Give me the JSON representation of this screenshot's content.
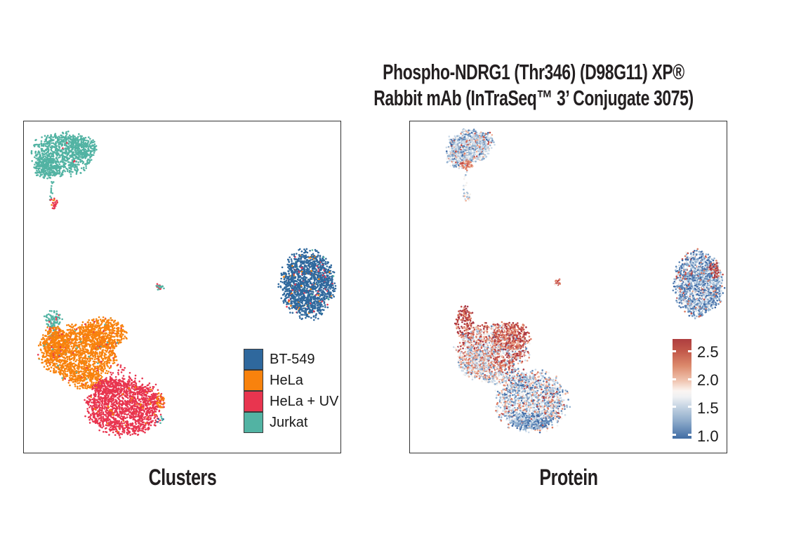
{
  "figure": {
    "title_line1": "Phospho-NDRG1 (Thr346) (D98G11) XP®",
    "title_line2": "Rabbit mAb (InTraSeq™ 3’ Conjugate 3075)"
  },
  "chart_data": [
    {
      "id": "clusters-panel",
      "type": "scatter",
      "title": "Clusters",
      "axes_visible": false,
      "encoding": "2D embedding of single cells colored by cell-line cluster",
      "legend": {
        "position": "inside-right",
        "entries": [
          {
            "label": "BT-549",
            "color": "#2F689D"
          },
          {
            "label": "HeLa",
            "color": "#F8820D"
          },
          {
            "label": "HeLa + UV",
            "color": "#E8354F"
          },
          {
            "label": "Jurkat",
            "color": "#52B3A3"
          }
        ]
      },
      "palettes": {
        "teal": [
          [
            "#52B3A3",
            1
          ]
        ],
        "tealSpeck": [
          [
            "#52B3A3",
            0.92
          ],
          [
            "#E8354F",
            0.08
          ]
        ],
        "tealRedMix": [
          [
            "#52B3A3",
            0.45
          ],
          [
            "#E8354F",
            0.55
          ]
        ],
        "orange": [
          [
            "#F8820D",
            0.955
          ],
          [
            "#E8354F",
            0.032
          ],
          [
            "#52B3A3",
            0.013
          ]
        ],
        "orangeOnly": [
          [
            "#F8820D",
            1
          ]
        ],
        "red": [
          [
            "#E8354F",
            0.975
          ],
          [
            "#F8820D",
            0.025
          ]
        ],
        "redOnly": [
          [
            "#E8354F",
            1
          ]
        ],
        "redTailEnd": [
          [
            "#E8354F",
            0.82
          ],
          [
            "#F8820D",
            0.18
          ]
        ],
        "tinyMix": [
          [
            "#52B3A3",
            0.55
          ],
          [
            "#E8354F",
            0.45
          ]
        ],
        "blueMain": [
          [
            "#2F689D",
            0.932
          ],
          [
            "#E8354F",
            0.028
          ],
          [
            "#F8820D",
            0.024
          ],
          [
            "#52B3A3",
            0.016
          ]
        ],
        "blueSpeck": [
          [
            "#2F689D",
            0.6
          ],
          [
            "#52B3A3",
            0.4
          ]
        ]
      },
      "clusters": [
        {
          "name": "Jurkat",
          "blobs": [
            {
              "type": "disk",
              "cx": 0.12,
              "cy": 0.1,
              "rx": 0.09,
              "ry": 0.062,
              "n": 850,
              "palette": "teal"
            },
            {
              "type": "disk",
              "cx": 0.19,
              "cy": 0.075,
              "rx": 0.042,
              "ry": 0.028,
              "n": 150,
              "palette": "teal"
            },
            {
              "type": "disk",
              "cx": 0.075,
              "cy": 0.14,
              "rx": 0.04,
              "ry": 0.032,
              "n": 170,
              "palette": "teal"
            },
            {
              "type": "disk",
              "cx": 0.12,
              "cy": 0.095,
              "rx": 0.06,
              "ry": 0.04,
              "n": 4,
              "palette": "redOnly"
            },
            {
              "type": "line",
              "x1": 0.09,
              "y1": 0.18,
              "x2": 0.086,
              "y2": 0.232,
              "n": 12,
              "jitter": 0.005,
              "palette": "teal"
            },
            {
              "type": "disk",
              "cx": 0.094,
              "cy": 0.247,
              "rx": 0.014,
              "ry": 0.016,
              "n": 26,
              "palette": "redTailEnd"
            },
            {
              "type": "disk",
              "cx": 0.093,
              "cy": 0.598,
              "rx": 0.027,
              "ry": 0.026,
              "n": 85,
              "palette": "tealSpeck"
            },
            {
              "type": "disk",
              "cx": 0.09,
              "cy": 0.64,
              "rx": 0.013,
              "ry": 0.022,
              "n": 28,
              "palette": "tealRedMix"
            }
          ]
        },
        {
          "name": "small mixed islet",
          "blobs": [
            {
              "type": "disk",
              "cx": 0.43,
              "cy": 0.499,
              "rx": 0.013,
              "ry": 0.011,
              "n": 22,
              "palette": "tinyMix"
            }
          ]
        },
        {
          "name": "HeLa",
          "blobs": [
            {
              "type": "disk",
              "cx": 0.175,
              "cy": 0.7,
              "rx": 0.115,
              "ry": 0.08,
              "n": 1450,
              "palette": "orange"
            },
            {
              "type": "disk",
              "cx": 0.25,
              "cy": 0.64,
              "rx": 0.07,
              "ry": 0.045,
              "n": 450,
              "palette": "orange"
            },
            {
              "type": "disk",
              "cx": 0.095,
              "cy": 0.67,
              "rx": 0.042,
              "ry": 0.05,
              "n": 250,
              "palette": "orange"
            },
            {
              "type": "disk",
              "cx": 0.2,
              "cy": 0.785,
              "rx": 0.055,
              "ry": 0.025,
              "n": 150,
              "palette": "orange"
            },
            {
              "type": "disk",
              "cx": 0.3,
              "cy": 0.78,
              "rx": 0.045,
              "ry": 0.045,
              "n": 30,
              "palette": "redOnly"
            }
          ]
        },
        {
          "name": "HeLa + UV",
          "blobs": [
            {
              "type": "disk",
              "cx": 0.32,
              "cy": 0.86,
              "rx": 0.115,
              "ry": 0.083,
              "n": 1550,
              "palette": "red"
            },
            {
              "type": "disk",
              "cx": 0.26,
              "cy": 0.8,
              "rx": 0.04,
              "ry": 0.03,
              "n": 120,
              "palette": "redOnly"
            },
            {
              "type": "disk",
              "cx": 0.432,
              "cy": 0.845,
              "rx": 0.013,
              "ry": 0.028,
              "n": 26,
              "palette": "orangeOnly"
            },
            {
              "type": "disk",
              "cx": 0.43,
              "cy": 0.9,
              "rx": 0.012,
              "ry": 0.012,
              "n": 7,
              "palette": "blueSpeck"
            }
          ]
        },
        {
          "name": "BT-549",
          "blobs": [
            {
              "type": "disk",
              "cx": 0.897,
              "cy": 0.492,
              "rx": 0.08,
              "ry": 0.094,
              "n": 1450,
              "palette": "blueMain"
            }
          ]
        }
      ]
    },
    {
      "id": "protein-panel",
      "type": "scatter",
      "title": "Protein",
      "axes_visible": false,
      "encoding": "same embedding colored by Phospho-NDRG1 protein signal",
      "colorbar": {
        "ticks": [
          "2.5",
          "2.0",
          "1.5",
          "1.0"
        ],
        "range_top": 2.7,
        "range_bottom": 0.95,
        "gradient_top_to_bottom": [
          "#AE3E3F",
          "#C2584A",
          "#DC8A6C",
          "#F0C5B1",
          "#FBF5F1",
          "#EFF1F3",
          "#C5D4E3",
          "#8FACCB",
          "#406CA4"
        ],
        "gradient_stops_pct": [
          0,
          12,
          27,
          42,
          52,
          58,
          68,
          82,
          100
        ]
      },
      "palettes": {
        "jurkatBlue": [
          [
            "#CBDAE9",
            0.26
          ],
          [
            "#93B2D1",
            0.26
          ],
          [
            "#F4F1EE",
            0.16
          ],
          [
            "#5E87B7",
            0.12
          ],
          [
            "#F0B49C",
            0.09
          ],
          [
            "#3C68A5",
            0.04
          ],
          [
            "#DD7C63",
            0.04
          ],
          [
            "#C44B44",
            0.03
          ]
        ],
        "paleTail": [
          [
            "#CBDAE9",
            0.45
          ],
          [
            "#F4F1EE",
            0.35
          ],
          [
            "#93B2D1",
            0.2
          ]
        ],
        "paleEnd": [
          [
            "#F4F1EE",
            0.4
          ],
          [
            "#CBDAE9",
            0.25
          ],
          [
            "#F0B49C",
            0.2
          ],
          [
            "#93B2D1",
            0.15
          ]
        ],
        "warmPatch": [
          [
            "#DD7C63",
            0.4
          ],
          [
            "#C44B44",
            0.3
          ],
          [
            "#F0B49C",
            0.3
          ]
        ],
        "tinyWarm": [
          [
            "#C44B44",
            0.35
          ],
          [
            "#DD7C63",
            0.3
          ],
          [
            "#F4F1EE",
            0.25
          ],
          [
            "#F0B49C",
            0.1
          ]
        ],
        "armRed": [
          [
            "#A63440",
            0.4
          ],
          [
            "#C44B44",
            0.3
          ],
          [
            "#DD7C63",
            0.2
          ],
          [
            "#F0B49C",
            0.1
          ]
        ],
        "hotRed": [
          [
            "#C44B44",
            0.3
          ],
          [
            "#A63440",
            0.22
          ],
          [
            "#DD7C63",
            0.28
          ],
          [
            "#F0B49C",
            0.12
          ],
          [
            "#F4F1EE",
            0.08
          ]
        ],
        "helaMix": [
          [
            "#DD7C63",
            0.2
          ],
          [
            "#C44B44",
            0.15
          ],
          [
            "#A63440",
            0.09
          ],
          [
            "#F0B49C",
            0.15
          ],
          [
            "#F4F1EE",
            0.15
          ],
          [
            "#CBDAE9",
            0.12
          ],
          [
            "#93B2D1",
            0.09
          ],
          [
            "#5E87B7",
            0.05
          ]
        ],
        "helaGrey": [
          [
            "#F4F1EE",
            0.24
          ],
          [
            "#CBDAE9",
            0.24
          ],
          [
            "#93B2D1",
            0.16
          ],
          [
            "#F0B49C",
            0.18
          ],
          [
            "#DD7C63",
            0.12
          ],
          [
            "#5E87B7",
            0.06
          ]
        ],
        "uvMix": [
          [
            "#CBDAE9",
            0.22
          ],
          [
            "#93B2D1",
            0.2
          ],
          [
            "#F4F1EE",
            0.17
          ],
          [
            "#5E87B7",
            0.13
          ],
          [
            "#F0B49C",
            0.1
          ],
          [
            "#DD7C63",
            0.08
          ],
          [
            "#3C68A5",
            0.05
          ],
          [
            "#C44B44",
            0.03
          ],
          [
            "#A63440",
            0.02
          ]
        ],
        "uvBottom": [
          [
            "#5E87B7",
            0.35
          ],
          [
            "#93B2D1",
            0.3
          ],
          [
            "#3C68A5",
            0.2
          ],
          [
            "#CBDAE9",
            0.15
          ]
        ],
        "btBlue": [
          [
            "#5E87B7",
            0.27
          ],
          [
            "#93B2D1",
            0.24
          ],
          [
            "#3C68A5",
            0.17
          ],
          [
            "#CBDAE9",
            0.16
          ],
          [
            "#F4F1EE",
            0.08
          ],
          [
            "#C44B44",
            0.04
          ],
          [
            "#DD7C63",
            0.04
          ]
        ]
      },
      "clusters": [
        {
          "name": "Jurkat",
          "blobs": [
            {
              "type": "disk",
              "cx": 0.185,
              "cy": 0.075,
              "rx": 0.065,
              "ry": 0.05,
              "n": 700,
              "palette": "jurkatBlue"
            },
            {
              "type": "disk",
              "cx": 0.23,
              "cy": 0.058,
              "rx": 0.038,
              "ry": 0.026,
              "n": 150,
              "palette": "jurkatBlue"
            },
            {
              "type": "disk",
              "cx": 0.152,
              "cy": 0.112,
              "rx": 0.035,
              "ry": 0.03,
              "n": 170,
              "palette": "jurkatBlue"
            },
            {
              "type": "disk",
              "cx": 0.178,
              "cy": 0.132,
              "rx": 0.019,
              "ry": 0.014,
              "n": 40,
              "palette": "warmPatch"
            },
            {
              "type": "line",
              "x1": 0.177,
              "y1": 0.155,
              "x2": 0.172,
              "y2": 0.205,
              "n": 10,
              "jitter": 0.005,
              "palette": "paleTail"
            },
            {
              "type": "disk",
              "cx": 0.18,
              "cy": 0.227,
              "rx": 0.015,
              "ry": 0.015,
              "n": 22,
              "palette": "paleEnd"
            }
          ]
        },
        {
          "name": "small mixed islet",
          "blobs": [
            {
              "type": "disk",
              "cx": 0.467,
              "cy": 0.486,
              "rx": 0.012,
              "ry": 0.01,
              "n": 18,
              "palette": "tinyWarm"
            }
          ]
        },
        {
          "name": "HeLa",
          "blobs": [
            {
              "type": "disk",
              "cx": 0.172,
              "cy": 0.61,
              "rx": 0.028,
              "ry": 0.048,
              "n": 150,
              "palette": "armRed"
            },
            {
              "type": "disk",
              "cx": 0.26,
              "cy": 0.69,
              "rx": 0.105,
              "ry": 0.078,
              "n": 1350,
              "palette": "helaMix"
            },
            {
              "type": "disk",
              "cx": 0.32,
              "cy": 0.648,
              "rx": 0.055,
              "ry": 0.04,
              "n": 350,
              "palette": "hotRed"
            },
            {
              "type": "disk",
              "cx": 0.205,
              "cy": 0.728,
              "rx": 0.05,
              "ry": 0.045,
              "n": 330,
              "palette": "helaGrey"
            },
            {
              "type": "disk",
              "cx": 0.27,
              "cy": 0.775,
              "rx": 0.04,
              "ry": 0.02,
              "n": 100,
              "palette": "helaGrey"
            }
          ]
        },
        {
          "name": "HeLa + UV",
          "blobs": [
            {
              "type": "disk",
              "cx": 0.385,
              "cy": 0.845,
              "rx": 0.105,
              "ry": 0.085,
              "n": 1450,
              "palette": "uvMix"
            },
            {
              "type": "disk",
              "cx": 0.38,
              "cy": 0.905,
              "rx": 0.07,
              "ry": 0.024,
              "n": 240,
              "palette": "uvBottom"
            },
            {
              "type": "disk",
              "cx": 0.33,
              "cy": 0.772,
              "rx": 0.038,
              "ry": 0.028,
              "n": 55,
              "palette": "uvMix"
            }
          ]
        },
        {
          "name": "BT-549",
          "blobs": [
            {
              "type": "disk",
              "cx": 0.91,
              "cy": 0.49,
              "rx": 0.072,
              "ry": 0.092,
              "n": 1350,
              "palette": "btBlue"
            },
            {
              "type": "disk",
              "cx": 0.962,
              "cy": 0.448,
              "rx": 0.016,
              "ry": 0.026,
              "n": 50,
              "palette": "armRed"
            }
          ]
        }
      ]
    }
  ]
}
